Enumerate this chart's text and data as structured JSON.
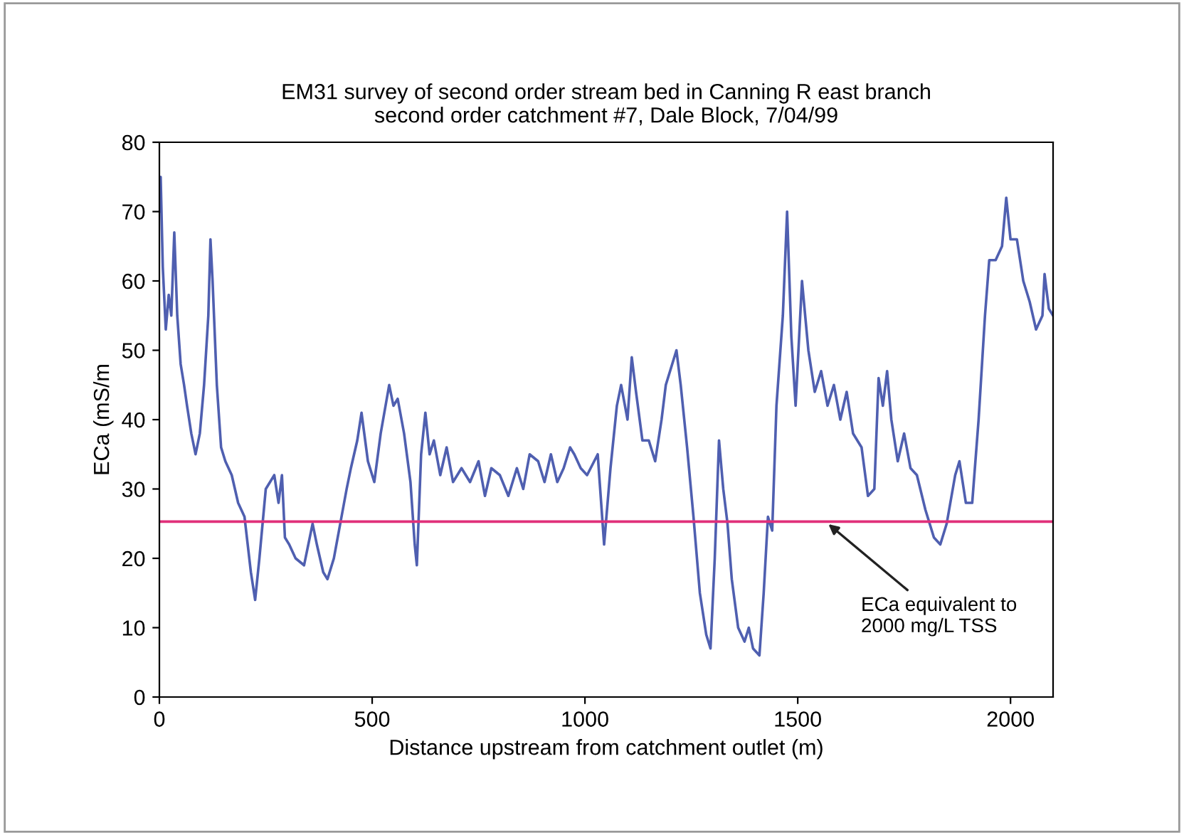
{
  "chart_data": {
    "type": "line",
    "title": "EM31 survey of second order stream bed in Canning R east branch\nsecond order catchment #7, Dale Block, 7/04/99",
    "xlabel": "Distance upstream from catchment outlet (m)",
    "ylabel": "ECa (mS/m",
    "x": [
      0,
      3,
      8,
      15,
      22,
      28,
      35,
      42,
      50,
      58,
      65,
      75,
      85,
      95,
      105,
      115,
      120,
      125,
      135,
      145,
      155,
      170,
      185,
      200,
      215,
      225,
      235,
      250,
      260,
      270,
      280,
      288,
      295,
      305,
      320,
      340,
      360,
      370,
      385,
      395,
      410,
      425,
      440,
      450,
      465,
      475,
      490,
      505,
      520,
      540,
      550,
      560,
      575,
      590,
      600,
      605,
      615,
      625,
      635,
      645,
      660,
      675,
      690,
      710,
      730,
      750,
      765,
      780,
      800,
      820,
      840,
      855,
      870,
      890,
      905,
      920,
      935,
      950,
      965,
      975,
      990,
      1005,
      1030,
      1045,
      1060,
      1075,
      1085,
      1100,
      1110,
      1120,
      1135,
      1150,
      1165,
      1180,
      1190,
      1205,
      1215,
      1225,
      1240,
      1255,
      1270,
      1285,
      1295,
      1305,
      1315,
      1325,
      1335,
      1345,
      1360,
      1375,
      1385,
      1395,
      1410,
      1420,
      1430,
      1440,
      1450,
      1465,
      1475,
      1485,
      1495,
      1510,
      1525,
      1540,
      1555,
      1570,
      1585,
      1600,
      1615,
      1630,
      1650,
      1665,
      1680,
      1690,
      1700,
      1710,
      1720,
      1735,
      1750,
      1765,
      1780,
      1800,
      1820,
      1835,
      1850,
      1870,
      1880,
      1895,
      1910,
      1925,
      1940,
      1950,
      1965,
      1980,
      1990,
      2000,
      2015,
      2030,
      2045,
      2060,
      2075,
      2080,
      2090,
      2100
    ],
    "series": [
      {
        "color": "#4f5fb0",
        "values": [
          70,
          75,
          62,
          53,
          58,
          55,
          67,
          55,
          48,
          45,
          42,
          38,
          35,
          38,
          45,
          55,
          66,
          60,
          45,
          36,
          34,
          32,
          28,
          26,
          18,
          14,
          20,
          30,
          31,
          32,
          28,
          32,
          23,
          22,
          20,
          19,
          25,
          22,
          18,
          17,
          20,
          25,
          30,
          33,
          37,
          41,
          34,
          31,
          38,
          45,
          42,
          43,
          38,
          31,
          22,
          19,
          35,
          41,
          35,
          37,
          32,
          36,
          31,
          33,
          31,
          34,
          29,
          33,
          32,
          29,
          33,
          30,
          35,
          34,
          31,
          35,
          31,
          33,
          36,
          35,
          33,
          32,
          35,
          22,
          33,
          42,
          45,
          40,
          49,
          44,
          37,
          37,
          34,
          40,
          45,
          48,
          50,
          45,
          36,
          26,
          15,
          9,
          7,
          20,
          37,
          30,
          25,
          17,
          10,
          8,
          10,
          7,
          6,
          15,
          26,
          24,
          42,
          55,
          70,
          52,
          42,
          60,
          50,
          44,
          47,
          42,
          45,
          40,
          44,
          38,
          36,
          29,
          30,
          46,
          42,
          47,
          40,
          34,
          38,
          33,
          32,
          27,
          23,
          22,
          25,
          32,
          34,
          28,
          28,
          40,
          55,
          63,
          63,
          65,
          72,
          66,
          66,
          60,
          57,
          53,
          55,
          61,
          56,
          55
        ]
      }
    ],
    "xlim": [
      0,
      2100
    ],
    "xticks": [
      0,
      500,
      1000,
      1500,
      2000
    ],
    "ylim": [
      0,
      80
    ],
    "yticks": [
      0,
      10,
      20,
      30,
      40,
      50,
      60,
      70,
      80
    ],
    "ref_lines": [
      {
        "axis": "y",
        "value": 25.3,
        "color": "#e0307a"
      }
    ],
    "annotations": [
      {
        "text": "ECa equivalent to\n2000 mg/L TSS",
        "x": 1565,
        "y": 25.3
      }
    ],
    "grid": false,
    "legend": false
  }
}
